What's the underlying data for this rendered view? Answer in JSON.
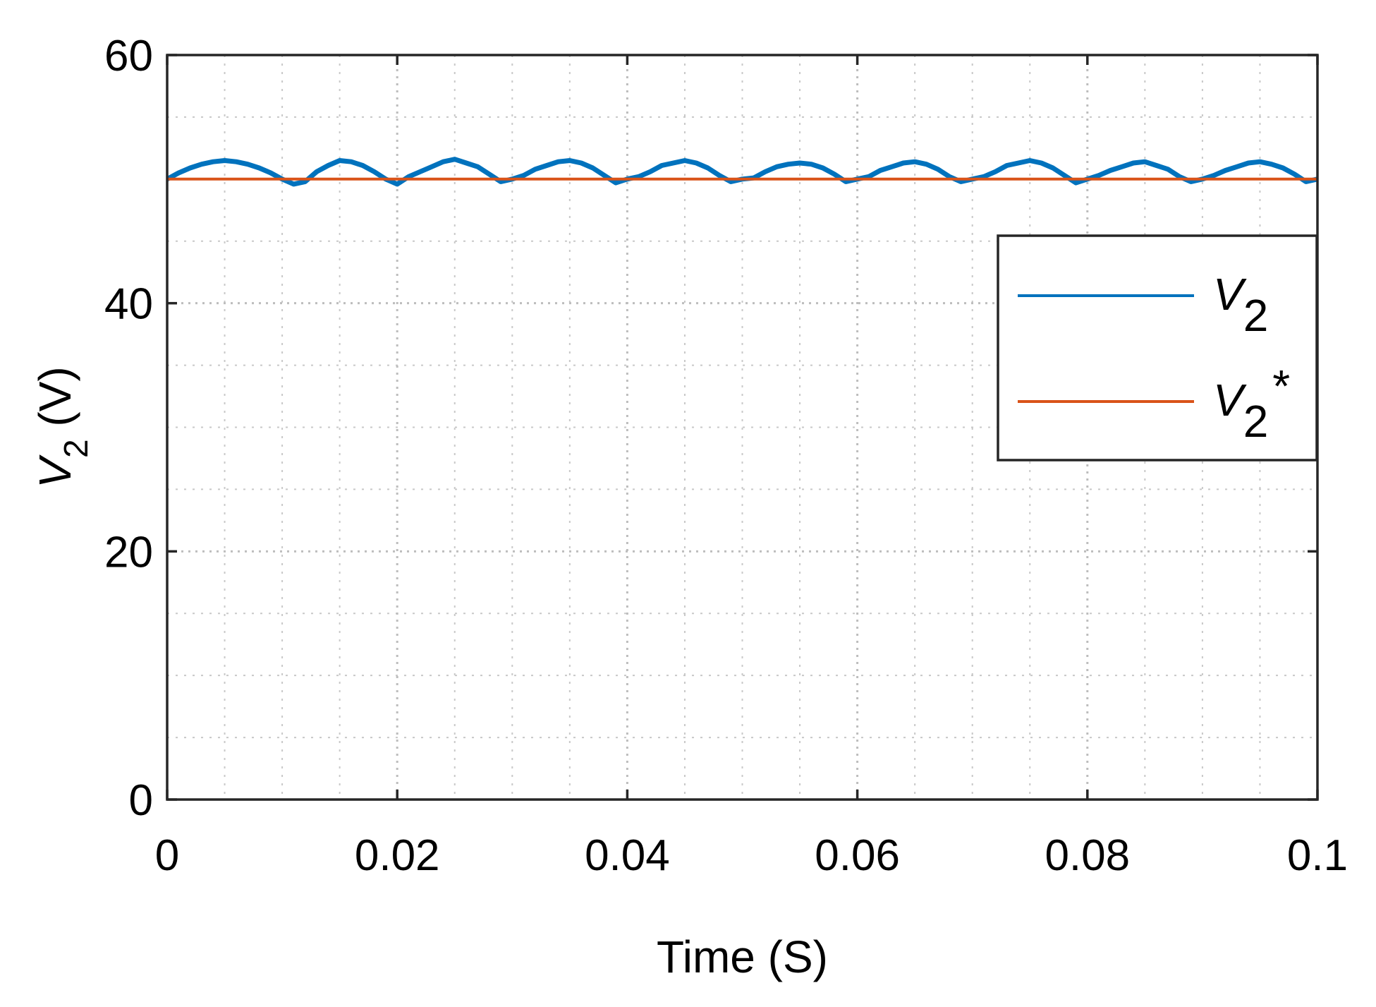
{
  "chart_data": {
    "type": "line",
    "title": "",
    "xlabel": "Time (S)",
    "ylabel": {
      "main": "V",
      "sub": "2",
      "unit": "(V)"
    },
    "xlim": [
      0,
      0.1
    ],
    "ylim": [
      0,
      60
    ],
    "x_ticks": [
      0,
      0.02,
      0.04,
      0.06,
      0.08,
      0.1
    ],
    "x_tick_labels": [
      "0",
      "0.02",
      "0.04",
      "0.06",
      "0.08",
      "0.1"
    ],
    "y_ticks": [
      0,
      20,
      40,
      60
    ],
    "y_tick_labels": [
      "0",
      "20",
      "40",
      "60"
    ],
    "x_minor_grid": [
      0.005,
      0.01,
      0.015,
      0.025,
      0.03,
      0.035,
      0.045,
      0.05,
      0.055,
      0.065,
      0.07,
      0.075,
      0.085,
      0.09,
      0.095
    ],
    "y_minor_grid": [
      5,
      10,
      15,
      25,
      30,
      35,
      45,
      50,
      55
    ],
    "grid": true,
    "legend_position": "right",
    "series": [
      {
        "name": {
          "main": "V",
          "sub": "2",
          "suffix": ""
        },
        "color": "#0072BD",
        "x": [
          0,
          0.001,
          0.002,
          0.003,
          0.004,
          0.005,
          0.006,
          0.007,
          0.008,
          0.009,
          0.01,
          0.011,
          0.012,
          0.013,
          0.014,
          0.015,
          0.016,
          0.017,
          0.018,
          0.019,
          0.02,
          0.021,
          0.022,
          0.023,
          0.024,
          0.025,
          0.026,
          0.027,
          0.028,
          0.029,
          0.03,
          0.031,
          0.032,
          0.033,
          0.034,
          0.035,
          0.036,
          0.037,
          0.038,
          0.039,
          0.04,
          0.041,
          0.042,
          0.043,
          0.044,
          0.045,
          0.046,
          0.047,
          0.048,
          0.049,
          0.05,
          0.051,
          0.052,
          0.053,
          0.054,
          0.055,
          0.056,
          0.057,
          0.058,
          0.059,
          0.06,
          0.061,
          0.062,
          0.063,
          0.064,
          0.065,
          0.066,
          0.067,
          0.068,
          0.069,
          0.07,
          0.071,
          0.072,
          0.073,
          0.074,
          0.075,
          0.076,
          0.077,
          0.078,
          0.079,
          0.08,
          0.081,
          0.082,
          0.083,
          0.084,
          0.085,
          0.086,
          0.087,
          0.088,
          0.089,
          0.09,
          0.091,
          0.092,
          0.093,
          0.094,
          0.095,
          0.096,
          0.097,
          0.098,
          0.099,
          0.1
        ],
        "values": [
          50.0,
          50.5,
          50.9,
          51.2,
          51.4,
          51.5,
          51.4,
          51.2,
          50.9,
          50.5,
          50.0,
          49.6,
          49.8,
          50.6,
          51.1,
          51.5,
          51.4,
          51.1,
          50.6,
          50.0,
          49.6,
          50.2,
          50.6,
          51.0,
          51.4,
          51.6,
          51.3,
          51.0,
          50.4,
          49.8,
          50.0,
          50.3,
          50.8,
          51.1,
          51.4,
          51.5,
          51.3,
          50.9,
          50.3,
          49.7,
          50.0,
          50.2,
          50.6,
          51.1,
          51.3,
          51.5,
          51.3,
          50.9,
          50.3,
          49.8,
          50.0,
          50.1,
          50.6,
          51.0,
          51.2,
          51.3,
          51.2,
          50.9,
          50.4,
          49.8,
          50.0,
          50.2,
          50.7,
          51.0,
          51.3,
          51.4,
          51.2,
          50.8,
          50.2,
          49.8,
          50.0,
          50.2,
          50.6,
          51.1,
          51.3,
          51.5,
          51.3,
          50.9,
          50.3,
          49.7,
          50.0,
          50.3,
          50.7,
          51.0,
          51.3,
          51.4,
          51.1,
          50.8,
          50.2,
          49.8,
          50.0,
          50.3,
          50.7,
          51.0,
          51.3,
          51.4,
          51.2,
          50.9,
          50.4,
          49.8,
          50.0
        ]
      },
      {
        "name": {
          "main": "V",
          "sub": "2",
          "suffix": "*"
        },
        "color": "#D95319",
        "x": [
          0,
          0.1
        ],
        "values": [
          50,
          50
        ]
      }
    ]
  }
}
